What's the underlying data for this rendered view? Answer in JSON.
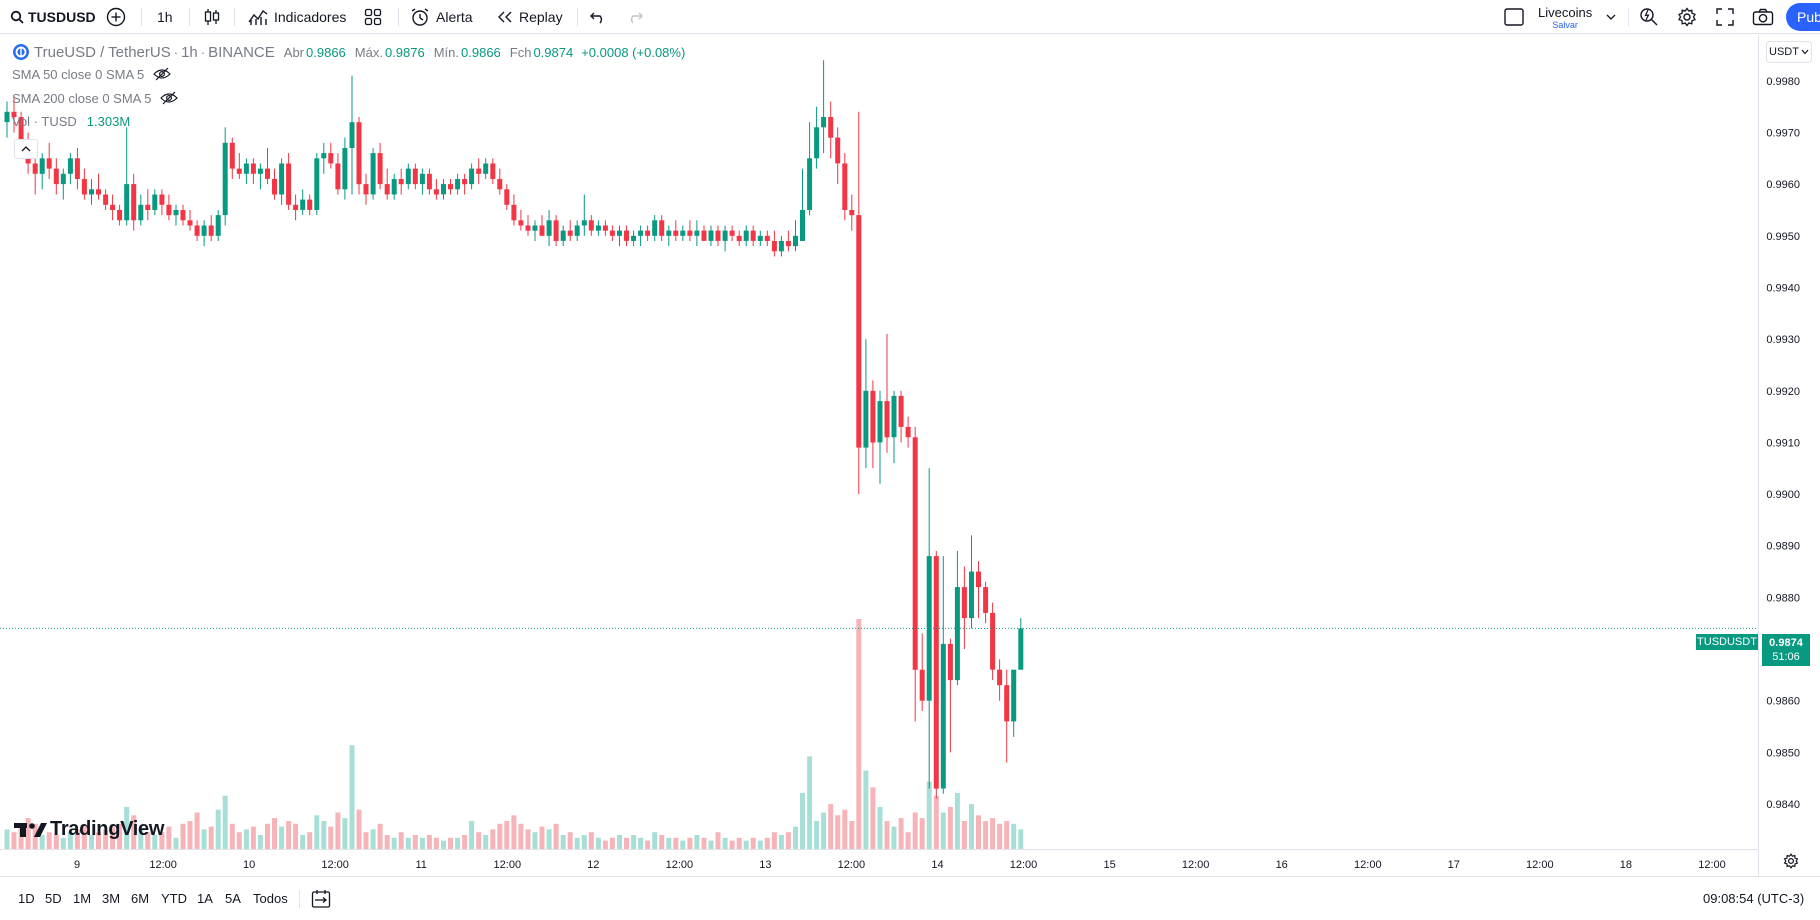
{
  "toolbar": {
    "symbol": "TUSDUSD",
    "interval": "1h",
    "indicators_label": "Indicadores",
    "alert_label": "Alerta",
    "replay_label": "Replay",
    "layout_name": "Livecoins",
    "layout_status": "Salvar",
    "publish_label": "Pub"
  },
  "legend": {
    "pair": "TrueUSD / TetherUS",
    "interval": "1h",
    "exchange": "BINANCE",
    "open_label": "Abr",
    "open": "0.9866",
    "high_label": "Máx.",
    "high": "0.9876",
    "low_label": "Mín.",
    "low": "0.9866",
    "close_label": "Fch",
    "close": "0.9874",
    "change": "+0.0008 (+0.08%)",
    "sma50": "SMA 50 close 0 SMA 5",
    "sma200": "SMA 200 close 0 SMA 5",
    "vol_label": "Vol · TUSD",
    "vol_value": "1.303M"
  },
  "currency": "USDT",
  "price_tag": {
    "symbol": "TUSDUSDT",
    "price": "0.9874",
    "countdown": "51:06"
  },
  "watermark": "TradingView",
  "ranges": [
    "1D",
    "5D",
    "1M",
    "3M",
    "6M",
    "YTD",
    "1A",
    "5A",
    "Todos"
  ],
  "clock": "09:08:54 (UTC-3)",
  "colors": {
    "up": "#089981",
    "down": "#f23645",
    "up_volume": "#a7dfd6",
    "down_volume": "#f7b4b8",
    "accent": "#2962ff"
  },
  "chart_data": {
    "type": "candlestick",
    "ylim": [
      0.9834,
      0.9985
    ],
    "y_ticks": [
      "0.9980",
      "0.9970",
      "0.9960",
      "0.9950",
      "0.9940",
      "0.9930",
      "0.9920",
      "0.9910",
      "0.9900",
      "0.9890",
      "0.9880",
      "0.9870",
      "0.9860",
      "0.9850",
      "0.9840"
    ],
    "x_ticks": [
      "9",
      "12:00",
      "10",
      "12:00",
      "11",
      "12:00",
      "12",
      "12:00",
      "13",
      "12:00",
      "14",
      "12:00",
      "15",
      "12:00",
      "16",
      "12:00",
      "17",
      "12:00",
      "18",
      "12:00"
    ],
    "series": [
      {
        "o": 0.9972,
        "h": 0.9976,
        "l": 0.9969,
        "c": 0.9974,
        "v": 0.7
      },
      {
        "o": 0.9974,
        "h": 0.9977,
        "l": 0.997,
        "c": 0.9973,
        "v": 0.6
      },
      {
        "o": 0.9973,
        "h": 0.9974,
        "l": 0.9967,
        "c": 0.9968,
        "v": 0.8
      },
      {
        "o": 0.9968,
        "h": 0.997,
        "l": 0.9962,
        "c": 0.9964,
        "v": 1.1
      },
      {
        "o": 0.9964,
        "h": 0.9966,
        "l": 0.9958,
        "c": 0.9962,
        "v": 0.9
      },
      {
        "o": 0.9962,
        "h": 0.9966,
        "l": 0.9959,
        "c": 0.9965,
        "v": 0.5
      },
      {
        "o": 0.9965,
        "h": 0.9968,
        "l": 0.9961,
        "c": 0.9963,
        "v": 0.6
      },
      {
        "o": 0.9963,
        "h": 0.9965,
        "l": 0.9958,
        "c": 0.996,
        "v": 0.5
      },
      {
        "o": 0.996,
        "h": 0.9963,
        "l": 0.9957,
        "c": 0.9962,
        "v": 0.4
      },
      {
        "o": 0.9962,
        "h": 0.9966,
        "l": 0.996,
        "c": 0.9965,
        "v": 0.6
      },
      {
        "o": 0.9965,
        "h": 0.9967,
        "l": 0.9959,
        "c": 0.9961,
        "v": 0.7
      },
      {
        "o": 0.9961,
        "h": 0.9963,
        "l": 0.9957,
        "c": 0.9958,
        "v": 0.8
      },
      {
        "o": 0.9958,
        "h": 0.9961,
        "l": 0.9956,
        "c": 0.9959,
        "v": 0.5
      },
      {
        "o": 0.9959,
        "h": 0.9962,
        "l": 0.9957,
        "c": 0.9958,
        "v": 0.6
      },
      {
        "o": 0.9958,
        "h": 0.9959,
        "l": 0.9955,
        "c": 0.9956,
        "v": 0.7
      },
      {
        "o": 0.9956,
        "h": 0.9958,
        "l": 0.9953,
        "c": 0.9955,
        "v": 0.8
      },
      {
        "o": 0.9955,
        "h": 0.9956,
        "l": 0.9952,
        "c": 0.9953,
        "v": 0.9
      },
      {
        "o": 0.9953,
        "h": 0.9971,
        "l": 0.9952,
        "c": 0.996,
        "v": 1.5
      },
      {
        "o": 0.996,
        "h": 0.9962,
        "l": 0.9951,
        "c": 0.9953,
        "v": 1.2
      },
      {
        "o": 0.9953,
        "h": 0.9958,
        "l": 0.9952,
        "c": 0.9956,
        "v": 0.7
      },
      {
        "o": 0.9956,
        "h": 0.9959,
        "l": 0.9953,
        "c": 0.9955,
        "v": 0.6
      },
      {
        "o": 0.9955,
        "h": 0.9959,
        "l": 0.9954,
        "c": 0.9958,
        "v": 0.5
      },
      {
        "o": 0.9958,
        "h": 0.9959,
        "l": 0.9954,
        "c": 0.9956,
        "v": 0.6
      },
      {
        "o": 0.9956,
        "h": 0.9958,
        "l": 0.9953,
        "c": 0.9954,
        "v": 0.8
      },
      {
        "o": 0.9954,
        "h": 0.9956,
        "l": 0.9952,
        "c": 0.9955,
        "v": 0.4
      },
      {
        "o": 0.9955,
        "h": 0.9956,
        "l": 0.9952,
        "c": 0.9953,
        "v": 0.9
      },
      {
        "o": 0.9953,
        "h": 0.9955,
        "l": 0.9951,
        "c": 0.9952,
        "v": 1.0
      },
      {
        "o": 0.9952,
        "h": 0.9953,
        "l": 0.9949,
        "c": 0.995,
        "v": 1.3
      },
      {
        "o": 0.995,
        "h": 0.9953,
        "l": 0.9948,
        "c": 0.9952,
        "v": 0.7
      },
      {
        "o": 0.9952,
        "h": 0.9954,
        "l": 0.9949,
        "c": 0.995,
        "v": 0.8
      },
      {
        "o": 0.995,
        "h": 0.9955,
        "l": 0.9949,
        "c": 0.9954,
        "v": 1.4
      },
      {
        "o": 0.9954,
        "h": 0.9971,
        "l": 0.9952,
        "c": 0.9968,
        "v": 1.9
      },
      {
        "o": 0.9968,
        "h": 0.9969,
        "l": 0.9961,
        "c": 0.9963,
        "v": 0.9
      },
      {
        "o": 0.9963,
        "h": 0.9966,
        "l": 0.9961,
        "c": 0.9962,
        "v": 0.6
      },
      {
        "o": 0.9962,
        "h": 0.9965,
        "l": 0.996,
        "c": 0.9964,
        "v": 0.7
      },
      {
        "o": 0.9964,
        "h": 0.9965,
        "l": 0.996,
        "c": 0.9962,
        "v": 0.8
      },
      {
        "o": 0.9962,
        "h": 0.9964,
        "l": 0.9959,
        "c": 0.9963,
        "v": 0.5
      },
      {
        "o": 0.9963,
        "h": 0.9967,
        "l": 0.996,
        "c": 0.9961,
        "v": 0.9
      },
      {
        "o": 0.9961,
        "h": 0.9963,
        "l": 0.9957,
        "c": 0.9958,
        "v": 1.1
      },
      {
        "o": 0.9958,
        "h": 0.9965,
        "l": 0.9956,
        "c": 0.9964,
        "v": 0.8
      },
      {
        "o": 0.9964,
        "h": 0.9966,
        "l": 0.9955,
        "c": 0.9956,
        "v": 1.0
      },
      {
        "o": 0.9956,
        "h": 0.9958,
        "l": 0.9953,
        "c": 0.9955,
        "v": 0.9
      },
      {
        "o": 0.9955,
        "h": 0.9959,
        "l": 0.9954,
        "c": 0.9957,
        "v": 0.5
      },
      {
        "o": 0.9957,
        "h": 0.9958,
        "l": 0.9954,
        "c": 0.9955,
        "v": 0.6
      },
      {
        "o": 0.9955,
        "h": 0.9966,
        "l": 0.9954,
        "c": 0.9965,
        "v": 1.2
      },
      {
        "o": 0.9965,
        "h": 0.9968,
        "l": 0.9962,
        "c": 0.9966,
        "v": 1.0
      },
      {
        "o": 0.9966,
        "h": 0.9968,
        "l": 0.9963,
        "c": 0.9964,
        "v": 0.8
      },
      {
        "o": 0.9964,
        "h": 0.9966,
        "l": 0.9958,
        "c": 0.9959,
        "v": 1.3
      },
      {
        "o": 0.9959,
        "h": 0.9969,
        "l": 0.9957,
        "c": 0.9967,
        "v": 1.1
      },
      {
        "o": 0.9967,
        "h": 0.9981,
        "l": 0.9958,
        "c": 0.9972,
        "v": 3.7
      },
      {
        "o": 0.9972,
        "h": 0.9973,
        "l": 0.9958,
        "c": 0.996,
        "v": 1.4
      },
      {
        "o": 0.996,
        "h": 0.9962,
        "l": 0.9956,
        "c": 0.9958,
        "v": 0.6
      },
      {
        "o": 0.9958,
        "h": 0.9967,
        "l": 0.9957,
        "c": 0.9966,
        "v": 0.7
      },
      {
        "o": 0.9966,
        "h": 0.9968,
        "l": 0.9959,
        "c": 0.996,
        "v": 0.9
      },
      {
        "o": 0.996,
        "h": 0.9963,
        "l": 0.9957,
        "c": 0.9958,
        "v": 0.5
      },
      {
        "o": 0.9958,
        "h": 0.9962,
        "l": 0.9957,
        "c": 0.9961,
        "v": 0.4
      },
      {
        "o": 0.9961,
        "h": 0.9963,
        "l": 0.9958,
        "c": 0.996,
        "v": 0.6
      },
      {
        "o": 0.996,
        "h": 0.9964,
        "l": 0.9959,
        "c": 0.9963,
        "v": 0.4
      },
      {
        "o": 0.9963,
        "h": 0.9964,
        "l": 0.9959,
        "c": 0.996,
        "v": 0.5
      },
      {
        "o": 0.996,
        "h": 0.9963,
        "l": 0.9958,
        "c": 0.9962,
        "v": 0.4
      },
      {
        "o": 0.9962,
        "h": 0.9963,
        "l": 0.9958,
        "c": 0.9959,
        "v": 0.5
      },
      {
        "o": 0.9959,
        "h": 0.9961,
        "l": 0.9957,
        "c": 0.9958,
        "v": 0.4
      },
      {
        "o": 0.9958,
        "h": 0.9961,
        "l": 0.9957,
        "c": 0.996,
        "v": 0.3
      },
      {
        "o": 0.996,
        "h": 0.9961,
        "l": 0.9958,
        "c": 0.9959,
        "v": 0.4
      },
      {
        "o": 0.9959,
        "h": 0.9962,
        "l": 0.9958,
        "c": 0.9961,
        "v": 0.4
      },
      {
        "o": 0.9961,
        "h": 0.9962,
        "l": 0.9958,
        "c": 0.996,
        "v": 0.5
      },
      {
        "o": 0.996,
        "h": 0.9964,
        "l": 0.9959,
        "c": 0.9963,
        "v": 1.0
      },
      {
        "o": 0.9963,
        "h": 0.9965,
        "l": 0.996,
        "c": 0.9962,
        "v": 0.6
      },
      {
        "o": 0.9962,
        "h": 0.9965,
        "l": 0.9961,
        "c": 0.9964,
        "v": 0.5
      },
      {
        "o": 0.9964,
        "h": 0.9965,
        "l": 0.996,
        "c": 0.9961,
        "v": 0.7
      },
      {
        "o": 0.9961,
        "h": 0.9963,
        "l": 0.9958,
        "c": 0.9959,
        "v": 0.9
      },
      {
        "o": 0.9959,
        "h": 0.996,
        "l": 0.9955,
        "c": 0.9956,
        "v": 1.0
      },
      {
        "o": 0.9956,
        "h": 0.9958,
        "l": 0.9952,
        "c": 0.9953,
        "v": 1.2
      },
      {
        "o": 0.9953,
        "h": 0.9955,
        "l": 0.9951,
        "c": 0.9952,
        "v": 0.9
      },
      {
        "o": 0.9952,
        "h": 0.9954,
        "l": 0.995,
        "c": 0.9951,
        "v": 0.7
      },
      {
        "o": 0.9951,
        "h": 0.9953,
        "l": 0.9949,
        "c": 0.9952,
        "v": 0.6
      },
      {
        "o": 0.9952,
        "h": 0.9954,
        "l": 0.995,
        "c": 0.995,
        "v": 0.8
      },
      {
        "o": 0.995,
        "h": 0.9955,
        "l": 0.9948,
        "c": 0.9953,
        "v": 0.7
      },
      {
        "o": 0.9953,
        "h": 0.9954,
        "l": 0.9948,
        "c": 0.9949,
        "v": 0.9
      },
      {
        "o": 0.9949,
        "h": 0.9952,
        "l": 0.9948,
        "c": 0.9951,
        "v": 0.5
      },
      {
        "o": 0.9951,
        "h": 0.9953,
        "l": 0.9949,
        "c": 0.995,
        "v": 0.6
      },
      {
        "o": 0.995,
        "h": 0.9953,
        "l": 0.9949,
        "c": 0.9952,
        "v": 0.4
      },
      {
        "o": 0.9952,
        "h": 0.9958,
        "l": 0.995,
        "c": 0.9953,
        "v": 0.5
      },
      {
        "o": 0.9953,
        "h": 0.9954,
        "l": 0.995,
        "c": 0.9951,
        "v": 0.6
      },
      {
        "o": 0.9951,
        "h": 0.9953,
        "l": 0.995,
        "c": 0.9952,
        "v": 0.4
      },
      {
        "o": 0.9952,
        "h": 0.9953,
        "l": 0.995,
        "c": 0.9951,
        "v": 0.3
      },
      {
        "o": 0.9951,
        "h": 0.9952,
        "l": 0.9949,
        "c": 0.995,
        "v": 0.4
      },
      {
        "o": 0.995,
        "h": 0.9952,
        "l": 0.9948,
        "c": 0.9951,
        "v": 0.5
      },
      {
        "o": 0.9951,
        "h": 0.9952,
        "l": 0.9948,
        "c": 0.9949,
        "v": 0.4
      },
      {
        "o": 0.9949,
        "h": 0.9951,
        "l": 0.9948,
        "c": 0.995,
        "v": 0.5
      },
      {
        "o": 0.995,
        "h": 0.9952,
        "l": 0.9948,
        "c": 0.9951,
        "v": 0.4
      },
      {
        "o": 0.9951,
        "h": 0.9952,
        "l": 0.9949,
        "c": 0.995,
        "v": 0.3
      },
      {
        "o": 0.995,
        "h": 0.9954,
        "l": 0.9949,
        "c": 0.9953,
        "v": 0.6
      },
      {
        "o": 0.9953,
        "h": 0.9954,
        "l": 0.9949,
        "c": 0.995,
        "v": 0.5
      },
      {
        "o": 0.995,
        "h": 0.9952,
        "l": 0.9948,
        "c": 0.9951,
        "v": 0.4
      },
      {
        "o": 0.9951,
        "h": 0.9953,
        "l": 0.9949,
        "c": 0.995,
        "v": 0.4
      },
      {
        "o": 0.995,
        "h": 0.9952,
        "l": 0.9949,
        "c": 0.9951,
        "v": 0.3
      },
      {
        "o": 0.9951,
        "h": 0.9953,
        "l": 0.9949,
        "c": 0.995,
        "v": 0.4
      },
      {
        "o": 0.995,
        "h": 0.9953,
        "l": 0.9948,
        "c": 0.9951,
        "v": 0.5
      },
      {
        "o": 0.9951,
        "h": 0.9952,
        "l": 0.9949,
        "c": 0.9949,
        "v": 0.4
      },
      {
        "o": 0.9949,
        "h": 0.9952,
        "l": 0.9948,
        "c": 0.9951,
        "v": 0.3
      },
      {
        "o": 0.9951,
        "h": 0.9952,
        "l": 0.9948,
        "c": 0.9949,
        "v": 0.6
      },
      {
        "o": 0.9949,
        "h": 0.9952,
        "l": 0.9947,
        "c": 0.9951,
        "v": 0.4
      },
      {
        "o": 0.9951,
        "h": 0.9952,
        "l": 0.9949,
        "c": 0.995,
        "v": 0.3
      },
      {
        "o": 0.995,
        "h": 0.9951,
        "l": 0.9948,
        "c": 0.9949,
        "v": 0.4
      },
      {
        "o": 0.9949,
        "h": 0.9952,
        "l": 0.9948,
        "c": 0.9951,
        "v": 0.3
      },
      {
        "o": 0.9951,
        "h": 0.9952,
        "l": 0.9948,
        "c": 0.9949,
        "v": 0.4
      },
      {
        "o": 0.9949,
        "h": 0.9951,
        "l": 0.9948,
        "c": 0.995,
        "v": 0.3
      },
      {
        "o": 0.995,
        "h": 0.9951,
        "l": 0.9948,
        "c": 0.9949,
        "v": 0.4
      },
      {
        "o": 0.9949,
        "h": 0.9951,
        "l": 0.9946,
        "c": 0.9947,
        "v": 0.6
      },
      {
        "o": 0.9947,
        "h": 0.995,
        "l": 0.9946,
        "c": 0.9949,
        "v": 0.5
      },
      {
        "o": 0.9949,
        "h": 0.9951,
        "l": 0.9947,
        "c": 0.9948,
        "v": 0.6
      },
      {
        "o": 0.9948,
        "h": 0.9953,
        "l": 0.9947,
        "c": 0.995,
        "v": 0.8
      },
      {
        "o": 0.9949,
        "h": 0.9963,
        "l": 0.9949,
        "c": 0.9955,
        "v": 2.0
      },
      {
        "o": 0.9955,
        "h": 0.9972,
        "l": 0.9954,
        "c": 0.9965,
        "v": 3.3
      },
      {
        "o": 0.9965,
        "h": 0.9975,
        "l": 0.9963,
        "c": 0.9971,
        "v": 1.0
      },
      {
        "o": 0.9971,
        "h": 0.9984,
        "l": 0.9966,
        "c": 0.9973,
        "v": 1.3
      },
      {
        "o": 0.9973,
        "h": 0.9976,
        "l": 0.9965,
        "c": 0.9969,
        "v": 1.6
      },
      {
        "o": 0.9969,
        "h": 0.9971,
        "l": 0.996,
        "c": 0.9964,
        "v": 1.2
      },
      {
        "o": 0.9964,
        "h": 0.9966,
        "l": 0.9953,
        "c": 0.9955,
        "v": 1.4
      },
      {
        "o": 0.9955,
        "h": 0.9958,
        "l": 0.9951,
        "c": 0.9954,
        "v": 1.0
      },
      {
        "o": 0.9954,
        "h": 0.9974,
        "l": 0.99,
        "c": 0.9909,
        "v": 8.2
      },
      {
        "o": 0.9909,
        "h": 0.993,
        "l": 0.9905,
        "c": 0.992,
        "v": 2.8
      },
      {
        "o": 0.992,
        "h": 0.9922,
        "l": 0.9905,
        "c": 0.991,
        "v": 2.2
      },
      {
        "o": 0.991,
        "h": 0.992,
        "l": 0.9902,
        "c": 0.9918,
        "v": 1.5
      },
      {
        "o": 0.9918,
        "h": 0.9931,
        "l": 0.9908,
        "c": 0.9911,
        "v": 1.0
      },
      {
        "o": 0.9911,
        "h": 0.992,
        "l": 0.9906,
        "c": 0.9919,
        "v": 0.8
      },
      {
        "o": 0.9919,
        "h": 0.992,
        "l": 0.991,
        "c": 0.9913,
        "v": 1.1
      },
      {
        "o": 0.9913,
        "h": 0.9915,
        "l": 0.9909,
        "c": 0.9911,
        "v": 0.6
      },
      {
        "o": 0.9911,
        "h": 0.9913,
        "l": 0.9856,
        "c": 0.9866,
        "v": 1.3
      },
      {
        "o": 0.9866,
        "h": 0.9873,
        "l": 0.9858,
        "c": 0.986,
        "v": 1.1
      },
      {
        "o": 0.986,
        "h": 0.9905,
        "l": 0.9843,
        "c": 0.9888,
        "v": 2.4
      },
      {
        "o": 0.9888,
        "h": 0.9889,
        "l": 0.9841,
        "c": 0.9843,
        "v": 1.9
      },
      {
        "o": 0.9843,
        "h": 0.9888,
        "l": 0.9842,
        "c": 0.9871,
        "v": 1.3
      },
      {
        "o": 0.9871,
        "h": 0.9872,
        "l": 0.985,
        "c": 0.9864,
        "v": 1.5
      },
      {
        "o": 0.9864,
        "h": 0.9889,
        "l": 0.9863,
        "c": 0.9882,
        "v": 2.0
      },
      {
        "o": 0.9882,
        "h": 0.9886,
        "l": 0.987,
        "c": 0.9876,
        "v": 1.0
      },
      {
        "o": 0.9876,
        "h": 0.9892,
        "l": 0.9874,
        "c": 0.9885,
        "v": 1.6
      },
      {
        "o": 0.9885,
        "h": 0.9887,
        "l": 0.9876,
        "c": 0.9882,
        "v": 1.2
      },
      {
        "o": 0.9882,
        "h": 0.9883,
        "l": 0.9875,
        "c": 0.9877,
        "v": 1.0
      },
      {
        "o": 0.9877,
        "h": 0.9879,
        "l": 0.9864,
        "c": 0.9866,
        "v": 1.1
      },
      {
        "o": 0.9866,
        "h": 0.9868,
        "l": 0.986,
        "c": 0.9863,
        "v": 0.9
      },
      {
        "o": 0.9863,
        "h": 0.9866,
        "l": 0.9848,
        "c": 0.9856,
        "v": 1.0
      },
      {
        "o": 0.9856,
        "h": 0.9866,
        "l": 0.9853,
        "c": 0.9866,
        "v": 0.9
      },
      {
        "o": 0.9866,
        "h": 0.9876,
        "l": 0.9866,
        "c": 0.9874,
        "v": 0.7
      }
    ]
  }
}
